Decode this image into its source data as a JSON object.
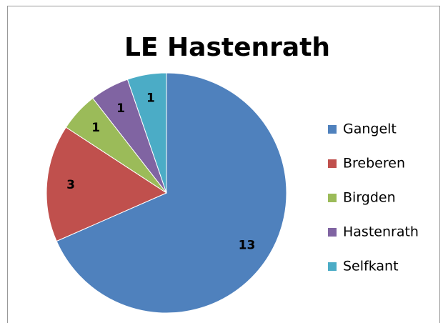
{
  "chart_data": {
    "type": "pie",
    "title": "LE Hastenrath",
    "categories": [
      "Gangelt",
      "Breberen",
      "Birgden",
      "Hastenrath",
      "Selfkant"
    ],
    "values": [
      13,
      3,
      1,
      1,
      1
    ],
    "colors": [
      "#4f81bd",
      "#c0504d",
      "#9bbb59",
      "#8064a2",
      "#4bacc6"
    ],
    "legend": "right"
  }
}
